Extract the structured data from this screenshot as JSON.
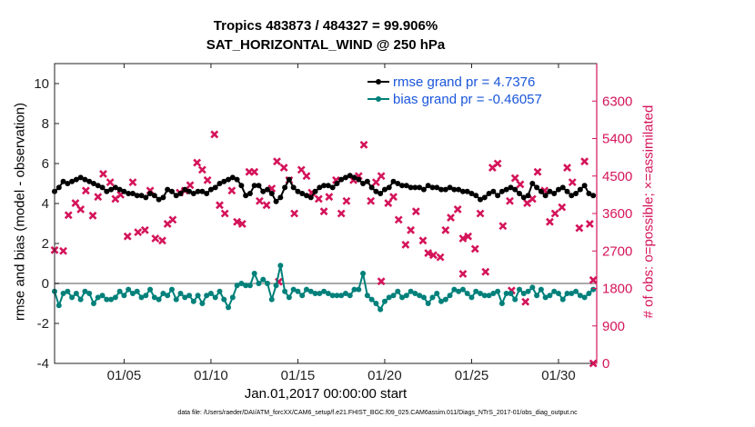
{
  "title": {
    "line1": "Tropics 483873 / 484327 = 99.906%",
    "line2": "SAT_HORIZONTAL_WIND @ 250 hPa"
  },
  "colors": {
    "rmse": "#000000",
    "bias": "#00807a",
    "obs": "#d4145a",
    "legend_text": "#1a56db",
    "zero_line": "#aaaaaa"
  },
  "chart_data": {
    "type": "line",
    "xlabel": "Jan.01,2017 00:00:00 start",
    "ylabel_left": "rmse and bias (model - observation)",
    "ylabel_right": "# of obs: o=possible; ×=assimilated",
    "footnote": "data file: /Users/raeder/DAI/ATM_forcXX/CAM6_setup/f.e21.FHIST_BGC.f09_025.CAM6assim.011/Diags_NTrS_2017-01/obs_diag_output.nc",
    "xlim": [
      1,
      32.2
    ],
    "x_ticks": [
      5,
      10,
      15,
      20,
      25,
      30
    ],
    "x_tick_labels": [
      "01/05",
      "01/10",
      "01/15",
      "01/20",
      "01/25",
      "01/30"
    ],
    "ylim_left": [
      -4,
      11
    ],
    "y_ticks_left": [
      -4,
      -2,
      0,
      2,
      4,
      6,
      8,
      10
    ],
    "y_tick_labels_left": [
      "-4",
      "-2",
      "0",
      "2",
      "4",
      "6",
      "8",
      "10"
    ],
    "ylim_right": [
      0,
      7200
    ],
    "y_ticks_right": [
      0,
      900,
      1800,
      2700,
      3600,
      4500,
      5400,
      6300
    ],
    "y_tick_labels_right": [
      "0",
      "900",
      "1800",
      "2700",
      "3600",
      "4500",
      "5400",
      "6300"
    ],
    "legend": [
      {
        "name": "rmse",
        "label": "rmse grand pr = 4.7376"
      },
      {
        "name": "bias",
        "label": "bias grand pr = -0.46057"
      }
    ],
    "series": [
      {
        "name": "rmse",
        "x": [
          1.0,
          1.25,
          1.5,
          1.75,
          2.0,
          2.25,
          2.5,
          2.75,
          3.0,
          3.25,
          3.5,
          3.75,
          4.0,
          4.25,
          4.5,
          4.75,
          5.0,
          5.25,
          5.5,
          5.75,
          6.0,
          6.25,
          6.5,
          6.75,
          7.0,
          7.25,
          7.5,
          7.75,
          8.0,
          8.25,
          8.5,
          8.75,
          9.0,
          9.25,
          9.5,
          9.75,
          10.0,
          10.25,
          10.5,
          10.75,
          11.0,
          11.25,
          11.5,
          11.75,
          12.0,
          12.25,
          12.5,
          12.75,
          13.0,
          13.25,
          13.5,
          13.75,
          14.0,
          14.25,
          14.5,
          14.75,
          15.0,
          15.25,
          15.5,
          15.75,
          16.0,
          16.25,
          16.5,
          16.75,
          17.0,
          17.25,
          17.5,
          17.75,
          18.0,
          18.25,
          18.5,
          18.75,
          19.0,
          19.25,
          19.5,
          19.75,
          20.0,
          20.25,
          20.5,
          20.75,
          21.0,
          21.25,
          21.5,
          21.75,
          22.0,
          22.25,
          22.5,
          22.75,
          23.0,
          23.25,
          23.5,
          23.75,
          24.0,
          24.25,
          24.5,
          24.75,
          25.0,
          25.25,
          25.5,
          25.75,
          26.0,
          26.25,
          26.5,
          26.75,
          27.0,
          27.25,
          27.5,
          27.75,
          28.0,
          28.25,
          28.5,
          28.75,
          29.0,
          29.25,
          29.5,
          29.75,
          30.0,
          30.25,
          30.5,
          30.75,
          31.0,
          31.25,
          31.5,
          31.75,
          32.0
        ],
        "values": [
          4.6,
          4.8,
          5.1,
          5.0,
          5.1,
          5.2,
          5.3,
          5.2,
          5.1,
          5.0,
          4.9,
          4.8,
          4.6,
          4.7,
          4.8,
          4.7,
          4.6,
          4.5,
          4.5,
          4.4,
          4.4,
          4.3,
          4.5,
          4.4,
          4.2,
          4.3,
          4.7,
          4.6,
          4.4,
          4.5,
          4.7,
          4.6,
          4.5,
          4.6,
          4.6,
          4.5,
          4.7,
          4.8,
          5.0,
          5.1,
          5.2,
          5.3,
          5.2,
          4.9,
          4.4,
          4.5,
          4.9,
          4.9,
          4.6,
          4.7,
          4.5,
          4.1,
          4.3,
          4.8,
          5.2,
          4.8,
          4.6,
          4.5,
          4.4,
          4.3,
          4.6,
          4.8,
          4.9,
          4.9,
          4.8,
          5.0,
          5.2,
          5.3,
          5.4,
          5.3,
          5.2,
          5.0,
          5.1,
          4.8,
          4.6,
          4.5,
          4.7,
          4.8,
          5.1,
          5.0,
          4.9,
          4.9,
          4.8,
          4.8,
          4.8,
          4.7,
          4.9,
          4.8,
          4.8,
          4.7,
          4.7,
          4.8,
          4.7,
          4.7,
          4.6,
          4.6,
          4.5,
          4.4,
          4.2,
          4.3,
          4.5,
          4.6,
          4.4,
          4.6,
          4.7,
          4.8,
          4.7,
          4.5,
          4.3,
          4.4,
          5.0,
          4.8,
          4.6,
          4.4,
          4.6,
          4.5,
          4.7,
          4.8,
          4.6,
          4.4,
          4.5,
          4.7,
          4.9,
          4.5,
          4.4
        ],
        "color": "#000000"
      },
      {
        "name": "bias",
        "x": [
          1.0,
          1.25,
          1.5,
          1.75,
          2.0,
          2.25,
          2.5,
          2.75,
          3.0,
          3.25,
          3.5,
          3.75,
          4.0,
          4.25,
          4.5,
          4.75,
          5.0,
          5.25,
          5.5,
          5.75,
          6.0,
          6.25,
          6.5,
          6.75,
          7.0,
          7.25,
          7.5,
          7.75,
          8.0,
          8.25,
          8.5,
          8.75,
          9.0,
          9.25,
          9.5,
          9.75,
          10.0,
          10.25,
          10.5,
          10.75,
          11.0,
          11.25,
          11.5,
          11.75,
          12.0,
          12.25,
          12.5,
          12.75,
          13.0,
          13.25,
          13.5,
          13.75,
          14.0,
          14.25,
          14.5,
          14.75,
          15.0,
          15.25,
          15.5,
          15.75,
          16.0,
          16.25,
          16.5,
          16.75,
          17.0,
          17.25,
          17.5,
          17.75,
          18.0,
          18.25,
          18.5,
          18.75,
          19.0,
          19.25,
          19.5,
          19.75,
          20.0,
          20.25,
          20.5,
          20.75,
          21.0,
          21.25,
          21.5,
          21.75,
          22.0,
          22.25,
          22.5,
          22.75,
          23.0,
          23.25,
          23.5,
          23.75,
          24.0,
          24.25,
          24.5,
          24.75,
          25.0,
          25.25,
          25.5,
          25.75,
          26.0,
          26.25,
          26.5,
          26.75,
          27.0,
          27.25,
          27.5,
          27.75,
          28.0,
          28.25,
          28.5,
          28.75,
          29.0,
          29.25,
          29.5,
          29.75,
          30.0,
          30.25,
          30.5,
          30.75,
          31.0,
          31.25,
          31.5,
          31.75,
          32.0
        ],
        "values": [
          -0.4,
          -1.1,
          -0.5,
          -0.4,
          -0.7,
          -0.5,
          -0.8,
          -0.4,
          -0.5,
          -1.0,
          -0.7,
          -0.6,
          -0.8,
          -0.8,
          -0.7,
          -0.4,
          -0.6,
          -0.3,
          -0.5,
          -0.4,
          -0.7,
          -0.6,
          -0.3,
          -0.7,
          -0.8,
          -0.5,
          -0.6,
          -0.3,
          -0.8,
          -0.5,
          -0.7,
          -0.6,
          -0.9,
          -0.6,
          -1.0,
          -0.6,
          -0.5,
          -0.7,
          -0.4,
          -0.8,
          -1.2,
          -0.7,
          -0.1,
          0.0,
          -0.1,
          -0.1,
          0.5,
          0.0,
          0.2,
          0.0,
          -0.8,
          -0.1,
          0.9,
          -0.4,
          -0.7,
          -0.3,
          -0.4,
          -0.6,
          -0.3,
          -0.4,
          -0.5,
          -0.5,
          -0.4,
          -0.5,
          -0.6,
          -0.6,
          -0.6,
          -0.5,
          -0.6,
          -0.3,
          -0.3,
          0.5,
          -0.6,
          -0.8,
          -1.0,
          -1.3,
          -0.9,
          -0.7,
          -0.6,
          -0.4,
          -0.7,
          -0.6,
          -0.4,
          -0.5,
          -0.6,
          -0.7,
          -1.0,
          -0.7,
          -0.5,
          -0.9,
          -0.8,
          -0.6,
          -0.3,
          -0.4,
          -0.3,
          -0.5,
          -0.7,
          -0.4,
          -0.5,
          -0.6,
          -0.6,
          -0.5,
          -0.4,
          -1.0,
          -0.5,
          -0.5,
          -0.8,
          -0.3,
          -0.5,
          -0.4,
          -0.2,
          -0.6,
          -0.3,
          -0.7,
          -0.6,
          -0.4,
          -0.5,
          -0.8,
          -0.5,
          -0.5,
          -0.4,
          -0.6,
          -0.7,
          -0.5,
          -0.3
        ],
        "color": "#00807a"
      },
      {
        "name": "obs_possible_and_assimilated",
        "marker": "cross",
        "x": [
          1.0,
          1.5,
          1.8,
          2.2,
          2.5,
          2.8,
          3.2,
          3.5,
          3.8,
          4.2,
          4.5,
          4.8,
          5.2,
          5.5,
          5.8,
          6.2,
          6.5,
          6.8,
          7.2,
          7.5,
          7.8,
          8.2,
          8.5,
          8.8,
          9.2,
          9.5,
          9.8,
          10.2,
          10.5,
          10.8,
          11.2,
          11.5,
          11.8,
          12.2,
          12.5,
          12.8,
          13.2,
          13.5,
          13.8,
          14.2,
          14.5,
          14.8,
          15.2,
          15.5,
          15.8,
          16.2,
          16.5,
          16.8,
          17.2,
          17.5,
          17.8,
          18.2,
          18.5,
          18.8,
          19.2,
          19.5,
          19.8,
          20.2,
          20.5,
          20.8,
          21.2,
          21.5,
          21.8,
          22.2,
          22.5,
          22.8,
          23.2,
          23.5,
          23.8,
          24.2,
          24.5,
          24.8,
          25.2,
          25.5,
          25.8,
          26.2,
          26.5,
          26.8,
          27.2,
          27.5,
          27.8,
          28.2,
          28.5,
          28.8,
          29.2,
          29.5,
          29.8,
          30.2,
          30.5,
          30.8,
          31.2,
          31.5,
          31.8,
          32.0
        ],
        "values": [
          2720,
          2700,
          3560,
          3850,
          3700,
          4150,
          3550,
          4000,
          4550,
          4350,
          3950,
          4050,
          3050,
          4350,
          3150,
          3200,
          4150,
          3000,
          2950,
          3350,
          3450,
          4100,
          4150,
          4280,
          4820,
          4650,
          4400,
          5500,
          3800,
          3600,
          4150,
          3400,
          3350,
          4600,
          4600,
          3900,
          3800,
          4200,
          4850,
          4700,
          4400,
          3600,
          4650,
          4500,
          4100,
          3950,
          3650,
          4000,
          4400,
          3600,
          3900,
          4400,
          4500,
          5250,
          3900,
          4350,
          4500,
          3850,
          4000,
          3450,
          2850,
          3200,
          3650,
          2950,
          2650,
          2600,
          2550,
          3200,
          3500,
          3700,
          3000,
          3050,
          2750,
          3600,
          2200,
          4700,
          4800,
          3300,
          3900,
          4450,
          4300,
          3850,
          3950,
          4600,
          4150,
          3400,
          3600,
          3750,
          4700,
          4350,
          3250,
          4850,
          3350,
          2000
        ],
        "color": "#d4145a"
      },
      {
        "name": "obs_low_outliers",
        "marker": "cross",
        "x": [
          13.9,
          19.8,
          24.5,
          27.3,
          28.1,
          32.0
        ],
        "values": [
          1960,
          1970,
          2150,
          1750,
          1480,
          0
        ],
        "color": "#d4145a"
      }
    ]
  }
}
